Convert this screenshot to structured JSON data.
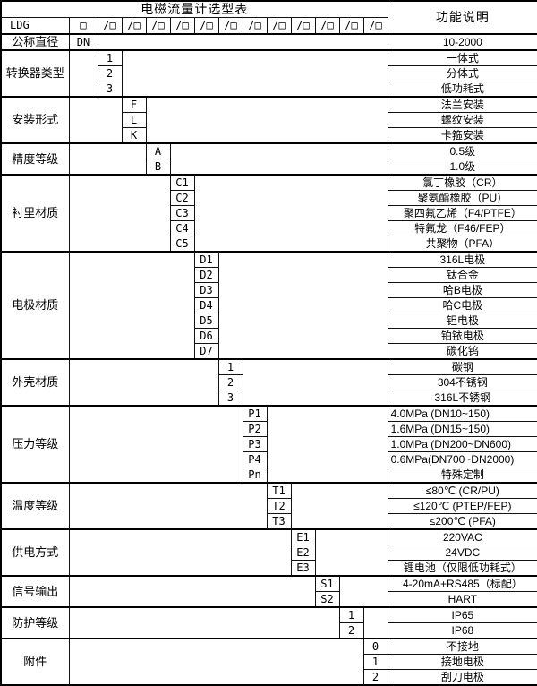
{
  "sheet": {
    "title": "电磁流量计选型表",
    "function_column_header": "功能说明",
    "model_code": {
      "prefix": "LDG",
      "first_slot": "□",
      "slot": "/□",
      "slot_count": 12
    },
    "categories": [
      {
        "key": "nominal-diameter",
        "label": "公称直径",
        "column": 1,
        "items": [
          {
            "code": "DN",
            "desc": "10-2000"
          }
        ]
      },
      {
        "key": "converter-type",
        "label": "转换器类型",
        "column": 2,
        "items": [
          {
            "code": "1",
            "desc": "一体式"
          },
          {
            "code": "2",
            "desc": "分体式"
          },
          {
            "code": "3",
            "desc": "低功耗式"
          }
        ]
      },
      {
        "key": "installation-type",
        "label": "安装形式",
        "column": 3,
        "items": [
          {
            "code": "F",
            "desc": "法兰安装"
          },
          {
            "code": "L",
            "desc": "螺纹安装"
          },
          {
            "code": "K",
            "desc": "卡箍安装"
          }
        ]
      },
      {
        "key": "accuracy-class",
        "label": "精度等级",
        "column": 4,
        "items": [
          {
            "code": "A",
            "desc": "0.5级"
          },
          {
            "code": "B",
            "desc": "1.0级"
          }
        ]
      },
      {
        "key": "lining-material",
        "label": "衬里材质",
        "column": 5,
        "items": [
          {
            "code": "C1",
            "desc": "氯丁橡胶（CR）"
          },
          {
            "code": "C2",
            "desc": "聚氨酯橡胶（PU）"
          },
          {
            "code": "C3",
            "desc": "聚四氟乙烯（F4/PTFE）"
          },
          {
            "code": "C4",
            "desc": "特氟龙（F46/FEP）"
          },
          {
            "code": "C5",
            "desc": "共聚物（PFA）"
          }
        ]
      },
      {
        "key": "electrode-material",
        "label": "电极材质",
        "column": 6,
        "items": [
          {
            "code": "D1",
            "desc": "316L电极"
          },
          {
            "code": "D2",
            "desc": "钛合金"
          },
          {
            "code": "D3",
            "desc": "哈B电极"
          },
          {
            "code": "D4",
            "desc": "哈C电极"
          },
          {
            "code": "D5",
            "desc": "钽电极"
          },
          {
            "code": "D6",
            "desc": "铂铱电极"
          },
          {
            "code": "D7",
            "desc": "碳化钨"
          }
        ]
      },
      {
        "key": "housing-material",
        "label": "外壳材质",
        "column": 7,
        "items": [
          {
            "code": "1",
            "desc": "碳钢"
          },
          {
            "code": "2",
            "desc": "304不锈钢"
          },
          {
            "code": "3",
            "desc": "316L不锈钢"
          }
        ]
      },
      {
        "key": "pressure-rating",
        "label": "压力等级",
        "column": 8,
        "items": [
          {
            "code": "P1",
            "desc": "4.0MPa (DN10~150)",
            "align": "left"
          },
          {
            "code": "P2",
            "desc": "1.6MPa (DN15~150)",
            "align": "left"
          },
          {
            "code": "P3",
            "desc": "1.0MPa (DN200~DN600)",
            "align": "left"
          },
          {
            "code": "P4",
            "desc": "0.6MPa(DN700~DN2000)",
            "align": "left"
          },
          {
            "code": "Pn",
            "desc": "特殊定制"
          }
        ]
      },
      {
        "key": "temperature-rating",
        "label": "温度等级",
        "column": 9,
        "items": [
          {
            "code": "T1",
            "desc": "≤80℃ (CR/PU)"
          },
          {
            "code": "T2",
            "desc": "≤120℃ (PTEP/FEP)"
          },
          {
            "code": "T3",
            "desc": "≤200℃ (PFA)"
          }
        ]
      },
      {
        "key": "power-supply",
        "label": "供电方式",
        "column": 10,
        "items": [
          {
            "code": "E1",
            "desc": "220VAC"
          },
          {
            "code": "E2",
            "desc": "24VDC"
          },
          {
            "code": "E3",
            "desc": "锂电池（仅限低功耗式）"
          }
        ]
      },
      {
        "key": "signal-output",
        "label": "信号输出",
        "column": 11,
        "items": [
          {
            "code": "S1",
            "desc": "4-20mA+RS485（标配）"
          },
          {
            "code": "S2",
            "desc": "HART"
          }
        ]
      },
      {
        "key": "protection-rating",
        "label": "防护等级",
        "column": 12,
        "items": [
          {
            "code": "1",
            "desc": "IP65"
          },
          {
            "code": "2",
            "desc": "IP68"
          }
        ]
      },
      {
        "key": "accessories",
        "label": "附件",
        "column": 13,
        "items": [
          {
            "code": "0",
            "desc": "不接地"
          },
          {
            "code": "1",
            "desc": "接地电极"
          },
          {
            "code": "2",
            "desc": "刮刀电极"
          }
        ]
      }
    ]
  }
}
